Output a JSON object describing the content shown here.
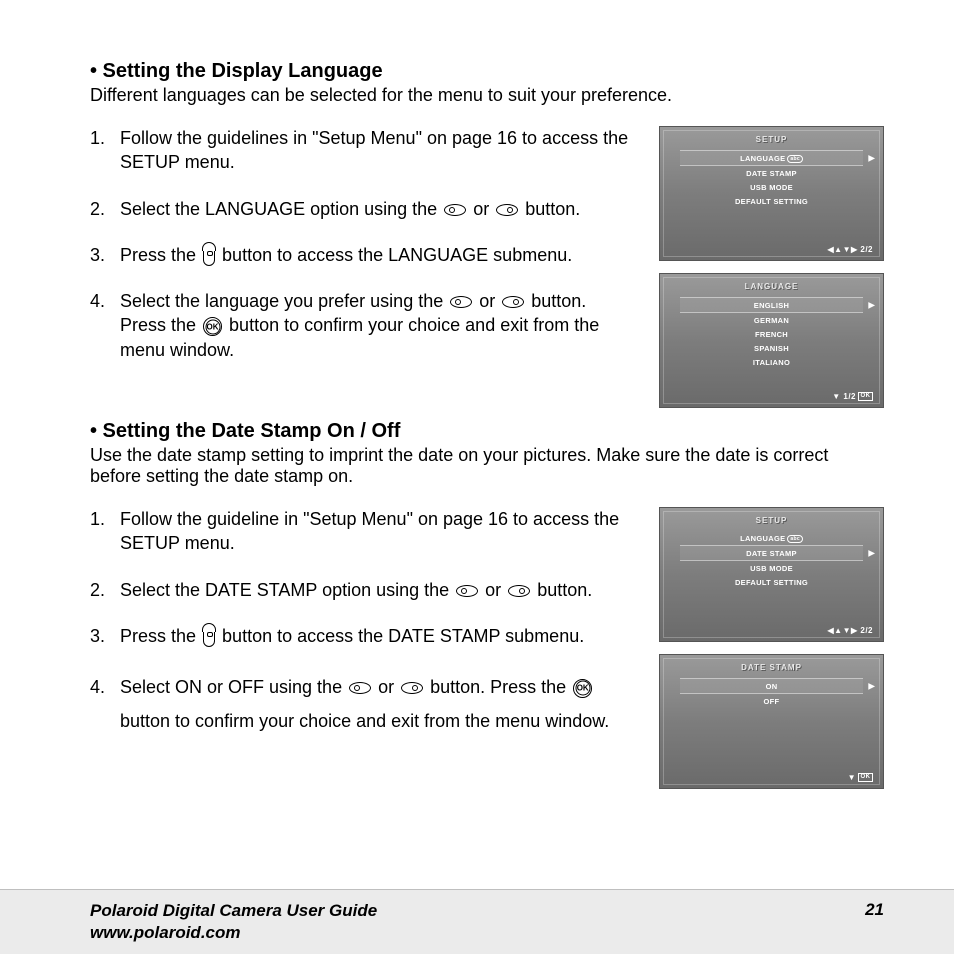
{
  "section1": {
    "title": "• Setting the Display Language",
    "intro": "Different languages can be selected for the menu to suit your preference.",
    "steps": {
      "a": "Follow the guidelines in \"Setup Menu\" on page 16 to access the SETUP menu.",
      "b_pre": "Select the LANGUAGE option using the ",
      "b_or": " or ",
      "b_post": " button.",
      "c_pre": "Press the ",
      "c_post": " button to access the LANGUAGE submenu.",
      "d_pre": "Select the language you prefer using the ",
      "d_or": " or ",
      "d_mid": " button. Press the ",
      "d_post": " button to confirm your choice and exit from the menu window."
    }
  },
  "section2": {
    "title": "• Setting the Date Stamp On / Off",
    "intro": "Use the date stamp setting to imprint the date on your pictures. Make sure the date is correct before setting the date stamp on.",
    "steps": {
      "a": "Follow the guideline in \"Setup Menu\" on page 16 to access the SETUP menu.",
      "b_pre": "Select the DATE STAMP option using the ",
      "b_or": " or ",
      "b_post": " button.",
      "c_pre": "Press the ",
      "c_post": " button to access the DATE STAMP submenu.",
      "d_pre": "Select ON or OFF using the ",
      "d_or": " or ",
      "d_mid": " button. Press the ",
      "d_post": " button to confirm your choice and exit from the menu window."
    }
  },
  "screens": {
    "setup1": {
      "title": "SETUP",
      "items": [
        "LANGUAGE",
        "DATE STAMP",
        "USB MODE",
        "DEFAULT SETTING"
      ],
      "highlight": 0,
      "badge_on": 0,
      "footer": "◀▲▼▶ 2/2"
    },
    "language": {
      "title": "LANGUAGE",
      "items": [
        "ENGLISH",
        "GERMAN",
        "FRENCH",
        "SPANISH",
        "ITALIANO"
      ],
      "highlight": 0,
      "footer_pre": "▼ 1/2 ",
      "footer_ok": "OK"
    },
    "setup2": {
      "title": "SETUP",
      "items": [
        "LANGUAGE",
        "DATE STAMP",
        "USB MODE",
        "DEFAULT SETTING"
      ],
      "highlight": 1,
      "badge_on": 0,
      "footer": "◀▲▼▶ 2/2"
    },
    "datestamp": {
      "title": "DATE STAMP",
      "items": [
        "ON",
        "OFF"
      ],
      "highlight": 0,
      "footer_pre": "▼ ",
      "footer_ok": "OK"
    }
  },
  "footer": {
    "title": "Polaroid Digital Camera User Guide",
    "url": "www.polaroid.com",
    "page": "21"
  },
  "nums": {
    "n1": "1.",
    "n2": "2.",
    "n3": "3.",
    "n4": "4."
  }
}
